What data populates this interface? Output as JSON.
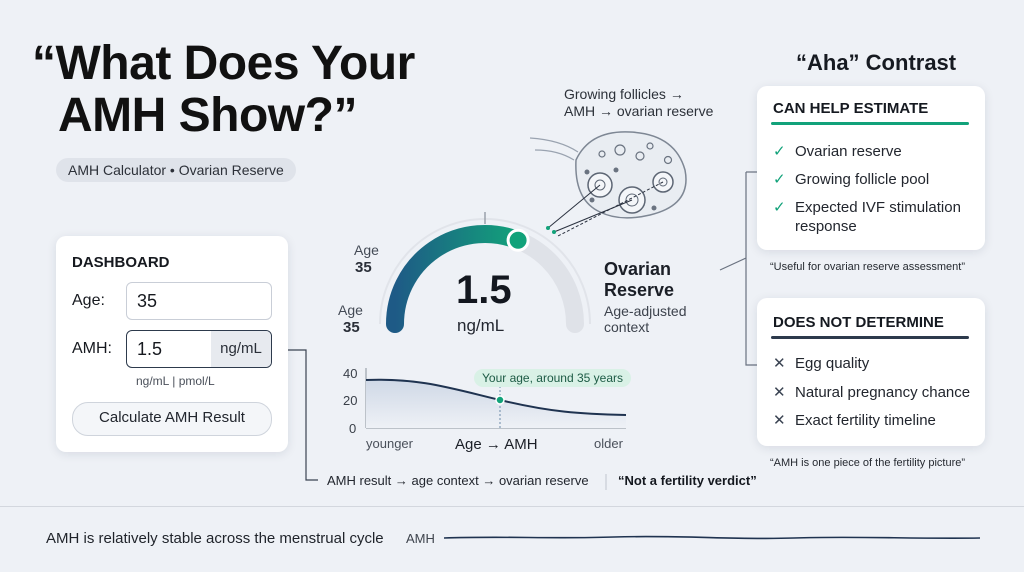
{
  "title": {
    "line1": "“What Does Your",
    "line2": "AMH Show?”"
  },
  "subtitle_chip": "AMH Calculator • Ovarian Reserve",
  "dashboard": {
    "heading": "DASHBOARD",
    "age_label": "Age:",
    "age_value": "35",
    "amh_label": "AMH:",
    "amh_value": "1.5",
    "amh_unit": "ng/mL",
    "unit_options": "ng/mL | pmol/L",
    "button": "Calculate AMH Result"
  },
  "gauge": {
    "age_label_top": "Age",
    "age_value_top": "35",
    "age_label_bottom": "Age",
    "age_value_bottom": "35",
    "value": "1.5",
    "unit": "ng/mL",
    "level_fraction": 0.62,
    "colors": {
      "start": "#1e5a86",
      "end": "#12a27a"
    }
  },
  "follicles": {
    "line1": "Growing follicles →",
    "line2": "AMH → ovarian reserve"
  },
  "ovarian": {
    "title1": "Ovarian",
    "title2": "Reserve",
    "sub1": "Age-adjusted",
    "sub2": "context"
  },
  "age_chart": {
    "ticks": [
      "40",
      "20",
      "0"
    ],
    "xlabel": "Age → AMH",
    "left": "younger",
    "right": "older",
    "callout": "Your age, around 35 years"
  },
  "flow": {
    "text": "AMH result → age context → ovarian reserve",
    "verdict": "“Not a fertility verdict”"
  },
  "aha": {
    "title": "“Aha” Contrast",
    "can": {
      "heading": "CAN HELP ESTIMATE",
      "items": [
        "Ovarian reserve",
        "Growing follicle pool",
        "Expected IVF stimulation",
        "response"
      ],
      "quote": "“Useful for ovarian reserve assessment”",
      "accent": "#12a27a"
    },
    "cannot": {
      "heading": "DOES NOT DETERMINE",
      "items": [
        "Egg quality",
        "Natural pregnancy chance",
        "Exact fertility timeline"
      ],
      "quote": "“AMH is one piece of the fertility picture”",
      "accent": "#2d3a4c"
    }
  },
  "footer": {
    "text": "AMH is relatively stable across the menstrual cycle",
    "trace_label": "AMH"
  }
}
